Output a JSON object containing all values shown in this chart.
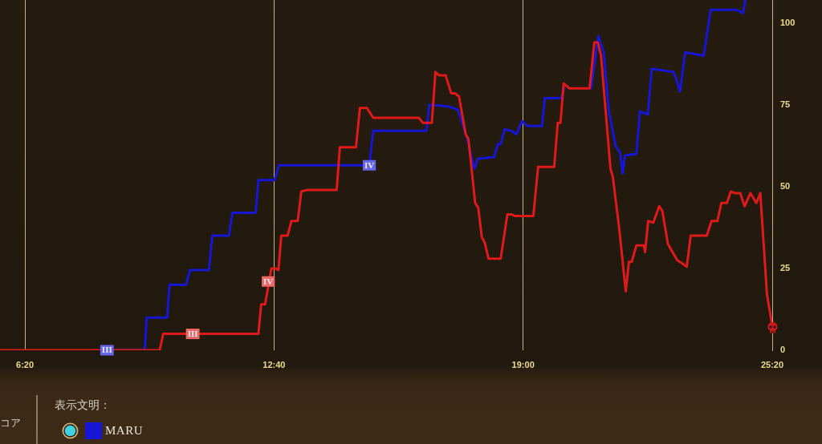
{
  "chart_data": {
    "type": "line",
    "xlim": [
      5.7,
      25.3333
    ],
    "xticks": [
      {
        "value": 6.3333,
        "label": "6:20"
      },
      {
        "value": 12.6667,
        "label": "12:40"
      },
      {
        "value": 19,
        "label": "19:00"
      },
      {
        "value": 25.3333,
        "label": "25:20"
      }
    ],
    "ylim": [
      0,
      107
    ],
    "yticks": [
      0,
      25,
      50,
      75,
      100
    ],
    "grid": "x",
    "legend": "bottom",
    "legend_title": "表示文明：",
    "series": [
      {
        "name": "MARU",
        "color": "#1616d4",
        "x": [
          8.42,
          9.38,
          9.43,
          9.95,
          10.01,
          10.43,
          10.53,
          11.01,
          11.1,
          11.52,
          11.61,
          12.2,
          12.27,
          12.68,
          12.79,
          15.09,
          15.19,
          16.54,
          16.62,
          17.1,
          17.34,
          17.41,
          17.58,
          17.76,
          17.85,
          18.26,
          18.36,
          18.43,
          18.53,
          18.7,
          18.83,
          18.97,
          19.11,
          19.48,
          19.55,
          19.96,
          20.05,
          20.4,
          20.73,
          20.91,
          21.05,
          21.18,
          21.35,
          21.46,
          21.53,
          21.59,
          21.88,
          21.97,
          22.17,
          22.27,
          22.82,
          22.89,
          22.99,
          23.12,
          23.59,
          23.77,
          24.42,
          24.59,
          24.65
        ],
        "values": [
          0,
          0,
          10,
          10,
          20,
          20,
          24.5,
          24.5,
          35,
          35,
          42,
          42,
          52,
          52,
          56.5,
          56.5,
          67,
          67,
          75,
          74.5,
          73.5,
          71,
          64.5,
          55.5,
          58.5,
          59,
          63,
          63,
          67.5,
          67,
          66,
          70,
          68.5,
          68.5,
          77,
          77,
          80,
          null,
          80,
          96,
          91,
          73,
          62.5,
          60.5,
          54,
          59.5,
          60,
          73,
          72,
          86,
          85,
          83,
          79,
          91,
          90,
          104,
          104,
          103,
          107
        ]
      },
      {
        "color": "#e01a1a",
        "x": [
          5.7,
          9.76,
          9.85,
          12.27,
          12.34,
          12.44,
          12.6,
          12.7,
          12.78,
          12.85,
          13.01,
          13.11,
          13.27,
          13.36,
          13.52,
          14.26,
          14.34,
          14.75,
          14.85,
          15.03,
          15.19,
          16.35,
          16.45,
          16.68,
          16.77,
          16.86,
          17.03,
          17.17,
          17.27,
          17.37,
          17.54,
          17.61,
          17.78,
          17.86,
          17.95,
          18.02,
          18.12,
          18.43,
          18.6,
          18.7,
          18.8,
          19.26,
          19.38,
          19.79,
          19.88,
          19.95,
          20.03,
          20.18,
          20.69,
          20.81,
          20.9,
          20.98,
          21.22,
          21.28,
          21.44,
          21.61,
          21.69,
          21.76,
          21.88,
          22.07,
          22.1,
          22.18,
          22.31,
          22.46,
          22.54,
          22.68,
          22.75,
          22.92,
          23.05,
          23.16,
          23.26,
          23.67,
          23.79,
          23.94,
          24.04,
          24.18,
          24.28,
          24.38,
          24.52,
          24.63,
          24.78,
          24.93,
          25.03,
          25.2,
          25.3333
        ],
        "values": [
          0,
          0,
          5,
          5,
          14,
          14,
          25,
          25,
          24.5,
          35,
          35,
          39.5,
          39.5,
          48.5,
          49,
          49,
          62,
          62,
          74,
          74,
          71,
          71,
          69.5,
          69.5,
          85,
          84,
          84,
          78.5,
          78.5,
          77.5,
          66,
          64.5,
          45,
          43.5,
          34.5,
          33,
          28,
          28,
          41.5,
          41.5,
          41,
          41,
          56,
          56,
          69.5,
          69.5,
          81.5,
          80,
          80,
          94,
          94,
          90,
          55.5,
          53,
          37.5,
          18,
          27,
          27,
          32,
          32,
          30,
          39.5,
          39,
          44,
          42.5,
          32.5,
          31,
          27.5,
          26.5,
          25.5,
          35,
          35,
          39.5,
          39.5,
          45,
          45,
          48.5,
          48,
          48,
          44,
          48,
          45,
          48,
          17,
          7.5
        ]
      }
    ],
    "annotations": [
      "コア",
      {
        "text": "III",
        "x": 8.42,
        "y": 0
      },
      {
        "text": "III",
        "x": 10.6,
        "y": 5
      },
      {
        "text": "IV",
        "x": 12.52,
        "y": 21
      },
      {
        "text": "IV",
        "x": 15.09,
        "y": 56.5
      }
    ]
  }
}
